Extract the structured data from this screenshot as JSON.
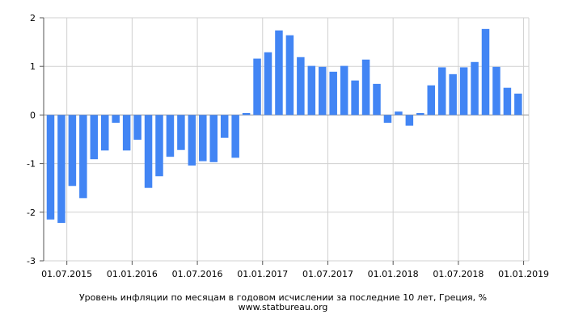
{
  "chart_data": {
    "type": "bar",
    "title": "Уровень инфляции по месяцам в годовом исчислении за последние 10 лет, Греция, %",
    "source": "www.statbureau.org",
    "xlabel": "",
    "ylabel": "",
    "ylim": [
      -3,
      2
    ],
    "yticks": [
      "-3",
      "-2",
      "-1",
      "0",
      "1",
      "2"
    ],
    "grid": true,
    "color": "#4285f4",
    "x_tick_labels": [
      "01.07.2015",
      "01.01.2016",
      "01.07.2016",
      "01.01.2017",
      "01.07.2017",
      "01.01.2018",
      "01.07.2018",
      "01.01.2019"
    ],
    "categories": [
      "05.2015",
      "06.2015",
      "07.2015",
      "08.2015",
      "09.2015",
      "10.2015",
      "11.2015",
      "12.2015",
      "01.2016",
      "02.2016",
      "03.2016",
      "04.2016",
      "05.2016",
      "06.2016",
      "07.2016",
      "08.2016",
      "09.2016",
      "10.2016",
      "11.2016",
      "12.2016",
      "01.2017",
      "02.2017",
      "03.2017",
      "04.2017",
      "05.2017",
      "06.2017",
      "07.2017",
      "08.2017",
      "09.2017",
      "10.2017",
      "11.2017",
      "12.2017",
      "01.2018",
      "02.2018",
      "03.2018",
      "04.2018",
      "05.2018",
      "06.2018",
      "07.2018",
      "08.2018",
      "09.2018",
      "10.2018",
      "11.2018",
      "12.2018"
    ],
    "values": [
      -2.15,
      -2.22,
      -1.46,
      -1.71,
      -0.91,
      -0.73,
      -0.16,
      -0.73,
      -0.51,
      -1.5,
      -1.26,
      -0.86,
      -0.72,
      -1.04,
      -0.95,
      -0.97,
      -0.47,
      -0.88,
      0.04,
      1.16,
      1.29,
      1.74,
      1.64,
      1.19,
      1.01,
      0.99,
      0.89,
      1.01,
      0.71,
      1.14,
      0.64,
      -0.16,
      0.07,
      -0.22,
      0.04,
      0.61,
      0.98,
      0.84,
      0.98,
      1.09,
      1.77,
      0.99,
      0.56,
      0.44
    ]
  }
}
